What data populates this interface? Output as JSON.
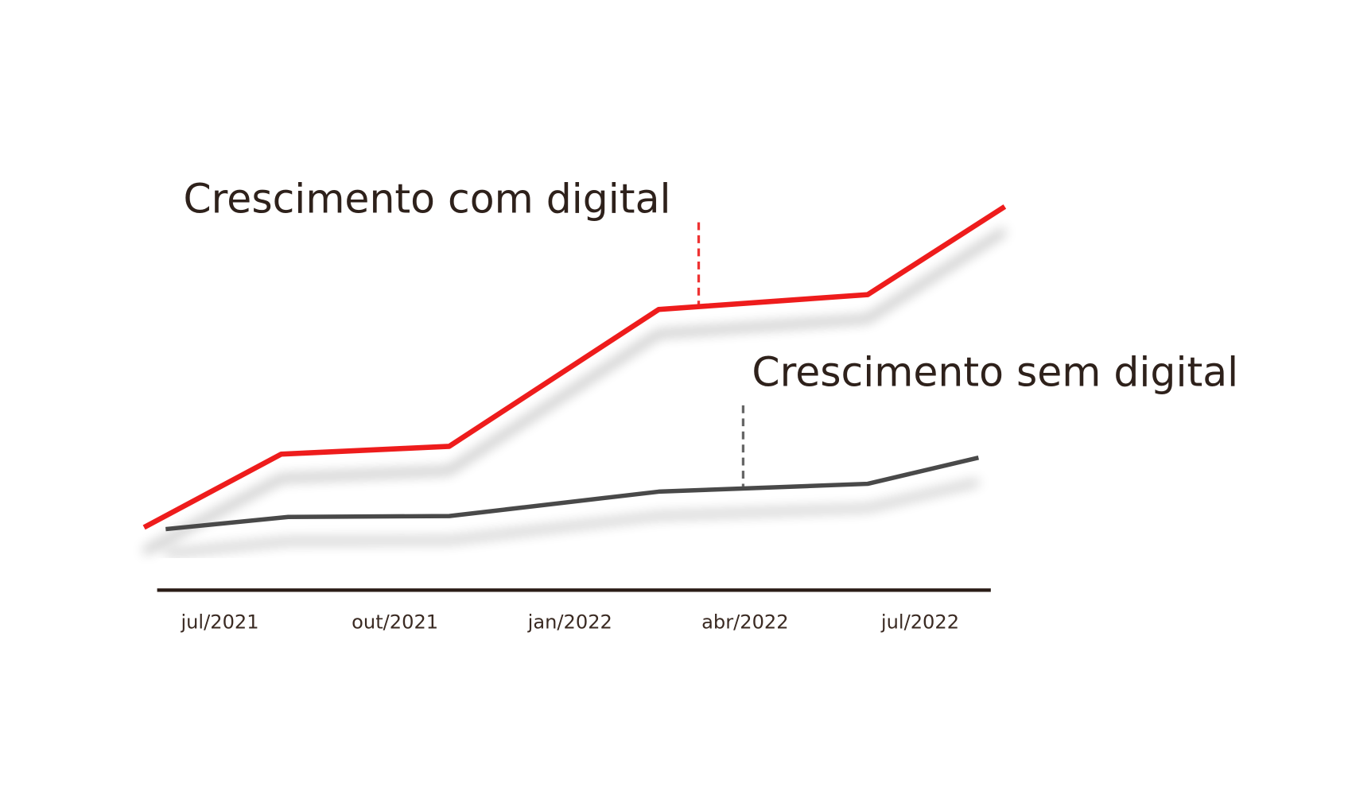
{
  "chart_data": {
    "type": "line",
    "xlim": [
      -1.5,
      13.5
    ],
    "xticks": [
      {
        "value": 0,
        "label": "jul/2021"
      },
      {
        "value": 3,
        "label": "out/2021"
      },
      {
        "value": 6,
        "label": "jan/2022"
      },
      {
        "value": 9,
        "label": "abr/2022"
      },
      {
        "value": 12,
        "label": "jul/2022"
      }
    ],
    "ylim": [
      0,
      100
    ],
    "series": [
      {
        "name": "Crescimento com digital",
        "color": "#ee1c1c",
        "x": [
          -1.3,
          1.05,
          3.93,
          7.52,
          11.1,
          13.45
        ],
        "values": [
          14.4,
          31.2,
          33,
          64.4,
          67.8,
          88
        ]
      },
      {
        "name": "Crescimento sem digital",
        "color": "#4a4a4a",
        "x": [
          -0.93,
          1.17,
          3.93,
          7.52,
          11.1,
          13.0
        ],
        "values": [
          14,
          16.8,
          17,
          22.6,
          24.4,
          30.4
        ]
      }
    ]
  }
}
